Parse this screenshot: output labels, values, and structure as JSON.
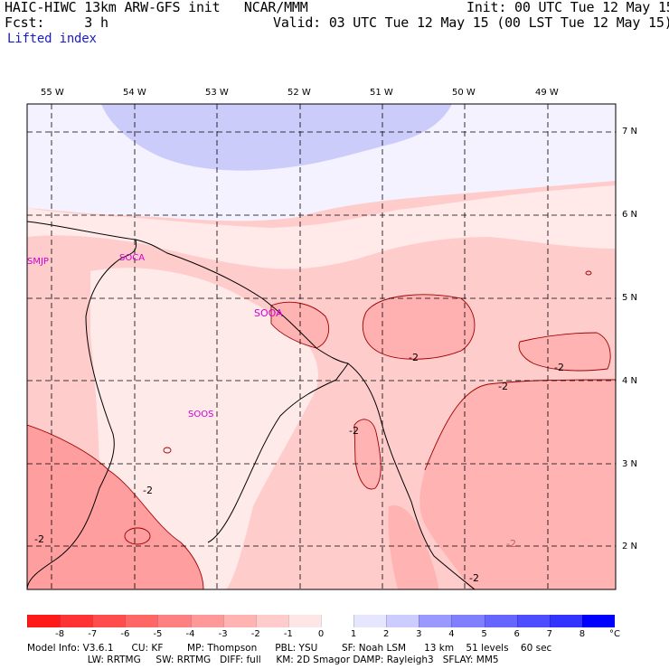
{
  "header": {
    "title_left": "HAIC-HIWC 13km ARW-GFS init   NCAR/MMM",
    "fcst_label": "Fcst:     3 h",
    "field_name": "Lifted index",
    "init": "Init: 00 UTC Tue 12 May 15",
    "valid": "Valid: 03 UTC Tue 12 May 15 (00 LST Tue 12 May 15)"
  },
  "map": {
    "lon_labels": [
      "55 W",
      "54 W",
      "53 W",
      "52 W",
      "51 W",
      "50 W",
      "49 W"
    ],
    "lat_labels": [
      "7 N",
      "6 N",
      "5 N",
      "4 N",
      "3 N",
      "2 N"
    ],
    "stations": [
      "SMJP",
      "SOCA",
      "SOOA",
      "SOOS"
    ],
    "contour_labels": [
      "-2",
      "-2",
      "-2",
      "-2",
      "-2",
      "-2",
      "-2",
      "-2"
    ]
  },
  "colorbar": {
    "unit": "°C",
    "ticks": [
      "-8",
      "-7",
      "-6",
      "-5",
      "-4",
      "-3",
      "-2",
      "-1",
      "0",
      "1",
      "2",
      "3",
      "4",
      "5",
      "6",
      "7",
      "8"
    ],
    "colors": [
      "#ff1a1a",
      "#ff3333",
      "#ff4d4d",
      "#ff6666",
      "#ff8080",
      "#ff9999",
      "#ffb3b3",
      "#ffcccc",
      "#ffe6e6",
      "#ffffff",
      "#e6e6ff",
      "#ccccff",
      "#9999ff",
      "#8080ff",
      "#6666ff",
      "#4d4dff",
      "#3333ff",
      "#0000ff"
    ]
  },
  "footer": {
    "line1": "Model Info: V3.6.1      CU: KF        MP: Thompson      PBL: YSU        SF: Noah LSM      13 km    51 levels    60 sec",
    "line2": "                    LW: RRTMG     SW: RRTMG   DIFF: full     KM: 2D Smagor DAMP: Rayleigh3   SFLAY: MM5"
  }
}
